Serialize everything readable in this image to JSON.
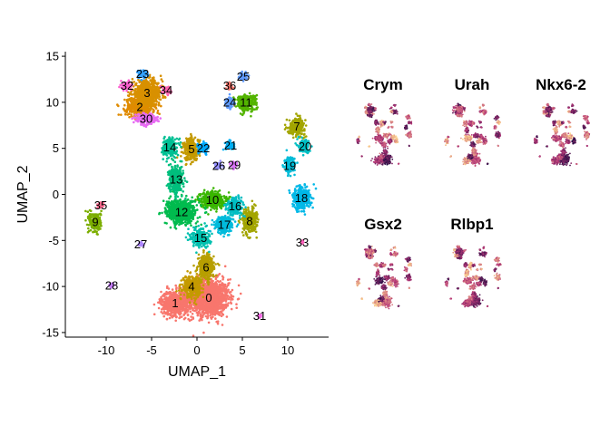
{
  "chart_data": [
    {
      "type": "scatter",
      "title": "",
      "xlabel": "UMAP_1",
      "ylabel": "UMAP_2",
      "xlim": [
        -14.5,
        14.5
      ],
      "ylim": [
        -15.5,
        15.5
      ],
      "xticks": [
        -10,
        -5,
        0,
        5,
        10
      ],
      "yticks": [
        -15,
        -10,
        -5,
        0,
        5,
        10,
        15
      ],
      "xtick_labels": [
        "-10",
        "-5",
        "0",
        "5",
        "10"
      ],
      "ytick_labels": [
        "-15",
        "-10",
        "-5",
        "0",
        "5",
        "10",
        "15"
      ],
      "grid": false,
      "legend": "none",
      "clusters": [
        {
          "name": "0",
          "x": 1.3,
          "y": -11.2,
          "sx": 2.0,
          "sy": 1.8,
          "color": "#F8766D"
        },
        {
          "name": "1",
          "x": -2.4,
          "y": -11.8,
          "sx": 1.4,
          "sy": 1.2,
          "color": "#F8766D"
        },
        {
          "name": "2",
          "x": -6.3,
          "y": 9.5,
          "sx": 1.4,
          "sy": 0.9,
          "color": "#E08B00"
        },
        {
          "name": "3",
          "x": -5.5,
          "y": 11.0,
          "sx": 1.5,
          "sy": 1.2,
          "color": "#D89000"
        },
        {
          "name": "4",
          "x": -0.6,
          "y": -10.0,
          "sx": 0.9,
          "sy": 1.0,
          "color": "#C49A00"
        },
        {
          "name": "5",
          "x": -0.6,
          "y": 4.9,
          "sx": 0.8,
          "sy": 1.1,
          "color": "#C49A00"
        },
        {
          "name": "6",
          "x": 1.0,
          "y": -7.9,
          "sx": 0.8,
          "sy": 1.2,
          "color": "#B79F00"
        },
        {
          "name": "7",
          "x": 11.0,
          "y": 7.4,
          "sx": 0.8,
          "sy": 0.8,
          "color": "#A3A500"
        },
        {
          "name": "8",
          "x": 5.8,
          "y": -2.9,
          "sx": 0.7,
          "sy": 1.2,
          "color": "#A3A500"
        },
        {
          "name": "9",
          "x": -11.2,
          "y": -3.0,
          "sx": 0.6,
          "sy": 1.0,
          "color": "#7CAE00"
        },
        {
          "name": "10",
          "x": 1.7,
          "y": -0.6,
          "sx": 1.2,
          "sy": 0.8,
          "color": "#39B600"
        },
        {
          "name": "11",
          "x": 5.4,
          "y": 10.0,
          "sx": 1.0,
          "sy": 0.8,
          "color": "#53B400"
        },
        {
          "name": "12",
          "x": -1.7,
          "y": -1.9,
          "sx": 1.5,
          "sy": 1.2,
          "color": "#00BB4E"
        },
        {
          "name": "13",
          "x": -2.3,
          "y": 1.6,
          "sx": 0.7,
          "sy": 1.3,
          "color": "#00BF7D"
        },
        {
          "name": "14",
          "x": -3.0,
          "y": 5.1,
          "sx": 0.7,
          "sy": 0.9,
          "color": "#00C094"
        },
        {
          "name": "15",
          "x": 0.4,
          "y": -4.7,
          "sx": 0.9,
          "sy": 0.9,
          "color": "#00C0AF"
        },
        {
          "name": "16",
          "x": 4.2,
          "y": -1.3,
          "sx": 0.8,
          "sy": 0.8,
          "color": "#00BDC2"
        },
        {
          "name": "17",
          "x": 3.0,
          "y": -3.3,
          "sx": 0.9,
          "sy": 0.8,
          "color": "#00BBDB"
        },
        {
          "name": "18",
          "x": 11.5,
          "y": -0.4,
          "sx": 0.9,
          "sy": 1.1,
          "color": "#00B8E7"
        },
        {
          "name": "19",
          "x": 10.2,
          "y": 3.1,
          "sx": 0.5,
          "sy": 0.8,
          "color": "#00BCD8"
        },
        {
          "name": "20",
          "x": 11.9,
          "y": 5.2,
          "sx": 0.6,
          "sy": 0.6,
          "color": "#00BFC4"
        },
        {
          "name": "21",
          "x": 3.7,
          "y": 5.3,
          "sx": 0.5,
          "sy": 0.4,
          "color": "#00B0F6"
        },
        {
          "name": "22",
          "x": 0.7,
          "y": 5.0,
          "sx": 0.5,
          "sy": 0.5,
          "color": "#00A9FF"
        },
        {
          "name": "23",
          "x": -6.0,
          "y": 13.1,
          "sx": 0.6,
          "sy": 0.4,
          "color": "#35A2FF"
        },
        {
          "name": "24",
          "x": 3.6,
          "y": 10.0,
          "sx": 0.4,
          "sy": 0.5,
          "color": "#619CFF"
        },
        {
          "name": "25",
          "x": 5.1,
          "y": 12.8,
          "sx": 0.4,
          "sy": 0.4,
          "color": "#619CFF"
        },
        {
          "name": "26",
          "x": 2.4,
          "y": 3.1,
          "sx": 0.4,
          "sy": 0.3,
          "color": "#9590FF"
        },
        {
          "name": "27",
          "x": -6.2,
          "y": -5.4,
          "sx": 0.25,
          "sy": 0.2,
          "color": "#AE87FF"
        },
        {
          "name": "28",
          "x": -9.4,
          "y": -9.9,
          "sx": 0.2,
          "sy": 0.2,
          "color": "#C77CFF"
        },
        {
          "name": "29",
          "x": 4.1,
          "y": 3.2,
          "sx": 0.4,
          "sy": 0.3,
          "color": "#DB72FB"
        },
        {
          "name": "30",
          "x": -5.6,
          "y": 8.2,
          "sx": 1.0,
          "sy": 0.5,
          "color": "#E76BF3"
        },
        {
          "name": "31",
          "x": 6.9,
          "y": -13.2,
          "sx": 0.15,
          "sy": 0.15,
          "color": "#F564E3"
        },
        {
          "name": "32",
          "x": -7.7,
          "y": 11.8,
          "sx": 0.5,
          "sy": 0.4,
          "color": "#FD61D1"
        },
        {
          "name": "33",
          "x": 11.6,
          "y": -5.2,
          "sx": 0.1,
          "sy": 0.15,
          "color": "#FF62BC"
        },
        {
          "name": "34",
          "x": -3.4,
          "y": 11.3,
          "sx": 0.4,
          "sy": 0.4,
          "color": "#FF65AE"
        },
        {
          "name": "35",
          "x": -10.6,
          "y": -1.2,
          "sx": 0.3,
          "sy": 0.3,
          "color": "#FF6C91"
        },
        {
          "name": "36",
          "x": 3.6,
          "y": 11.8,
          "sx": 0.3,
          "sy": 0.3,
          "color": "#F8766D"
        }
      ]
    },
    {
      "type": "scatter",
      "title": "Crym"
    },
    {
      "type": "scatter",
      "title": "Urah"
    },
    {
      "type": "scatter",
      "title": "Nkx6-2"
    },
    {
      "type": "scatter",
      "title": "Gsx2"
    },
    {
      "type": "scatter",
      "title": "Rlbp1"
    }
  ],
  "colors": {
    "feature_low": "#1b0c41",
    "feature_mid": "#b73779",
    "feature_high": "#fcd38e"
  }
}
